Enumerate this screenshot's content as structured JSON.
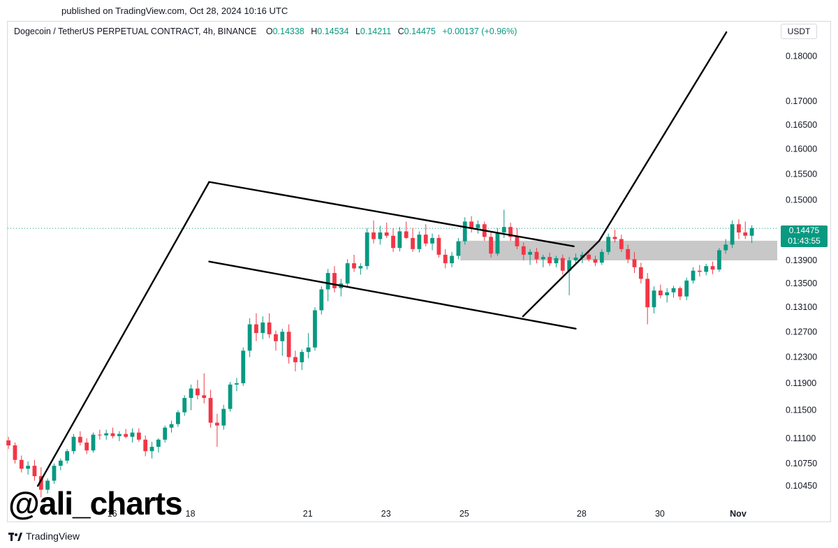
{
  "header": {
    "published": "published on TradingView.com, Oct 28, 2024 10:16 UTC"
  },
  "legend": {
    "symbol": "Dogecoin / TetherUS PERPETUAL CONTRACT, 4h, BINANCE",
    "o_label": "O",
    "o_value": "0.14338",
    "h_label": "H",
    "h_value": "0.14534",
    "l_label": "L",
    "l_value": "0.14211",
    "c_label": "C",
    "c_value": "0.14475",
    "change": "+0.00137 (+0.96%)"
  },
  "currency": "USDT",
  "last_price": {
    "value": "0.14475",
    "countdown": "01:43:55"
  },
  "watermark": "@ali_charts",
  "brand": "TradingView",
  "colors": {
    "up": "#089981",
    "down": "#f23645",
    "pattern_line": "#000000",
    "zone": "#c8c8c8",
    "price_line": "#089981"
  },
  "chart_data": {
    "type": "candlestick",
    "y_scale": "log",
    "ylim": [
      0.1025,
      0.188
    ],
    "y_ticks": [
      "0.18000",
      "0.17000",
      "0.16500",
      "0.16000",
      "0.15500",
      "0.15000",
      "0.13900",
      "0.13500",
      "0.13100",
      "0.12700",
      "0.12300",
      "0.11900",
      "0.11500",
      "0.11100",
      "0.10750",
      "0.10450"
    ],
    "x_ticks": [
      "16",
      "18",
      "21",
      "23",
      "25",
      "28",
      "30",
      "Nov"
    ],
    "x_range_days": [
      13.33,
      33.0
    ],
    "last_price": 0.14475,
    "candles": [
      {
        "o": 0.1107,
        "h": 0.1112,
        "l": 0.1095,
        "c": 0.11
      },
      {
        "o": 0.11,
        "h": 0.1104,
        "l": 0.1075,
        "c": 0.108
      },
      {
        "o": 0.108,
        "h": 0.1086,
        "l": 0.1063,
        "c": 0.1068
      },
      {
        "o": 0.1068,
        "h": 0.1078,
        "l": 0.106,
        "c": 0.1072
      },
      {
        "o": 0.1072,
        "h": 0.108,
        "l": 0.1052,
        "c": 0.1058
      },
      {
        "o": 0.1058,
        "h": 0.107,
        "l": 0.103,
        "c": 0.104
      },
      {
        "o": 0.104,
        "h": 0.1055,
        "l": 0.1035,
        "c": 0.1052
      },
      {
        "o": 0.1052,
        "h": 0.1075,
        "l": 0.1048,
        "c": 0.1072
      },
      {
        "o": 0.1072,
        "h": 0.1082,
        "l": 0.1066,
        "c": 0.1079
      },
      {
        "o": 0.1079,
        "h": 0.1095,
        "l": 0.1075,
        "c": 0.1092
      },
      {
        "o": 0.1092,
        "h": 0.1116,
        "l": 0.1088,
        "c": 0.1112
      },
      {
        "o": 0.1112,
        "h": 0.112,
        "l": 0.11,
        "c": 0.1104
      },
      {
        "o": 0.1104,
        "h": 0.111,
        "l": 0.1088,
        "c": 0.1093
      },
      {
        "o": 0.1093,
        "h": 0.1118,
        "l": 0.109,
        "c": 0.1115
      },
      {
        "o": 0.1115,
        "h": 0.1122,
        "l": 0.1108,
        "c": 0.1114
      },
      {
        "o": 0.1114,
        "h": 0.1122,
        "l": 0.1108,
        "c": 0.1117
      },
      {
        "o": 0.1117,
        "h": 0.1125,
        "l": 0.111,
        "c": 0.1113
      },
      {
        "o": 0.1113,
        "h": 0.112,
        "l": 0.1106,
        "c": 0.1116
      },
      {
        "o": 0.1116,
        "h": 0.1123,
        "l": 0.111,
        "c": 0.1112
      },
      {
        "o": 0.1112,
        "h": 0.1124,
        "l": 0.1104,
        "c": 0.1118
      },
      {
        "o": 0.1118,
        "h": 0.1124,
        "l": 0.1105,
        "c": 0.1108
      },
      {
        "o": 0.1108,
        "h": 0.1114,
        "l": 0.1085,
        "c": 0.1092
      },
      {
        "o": 0.1092,
        "h": 0.1105,
        "l": 0.1082,
        "c": 0.1098
      },
      {
        "o": 0.1098,
        "h": 0.111,
        "l": 0.109,
        "c": 0.1108
      },
      {
        "o": 0.1108,
        "h": 0.1128,
        "l": 0.1104,
        "c": 0.1125
      },
      {
        "o": 0.1125,
        "h": 0.1135,
        "l": 0.1118,
        "c": 0.113
      },
      {
        "o": 0.113,
        "h": 0.115,
        "l": 0.1126,
        "c": 0.1147
      },
      {
        "o": 0.1147,
        "h": 0.1172,
        "l": 0.1142,
        "c": 0.1168
      },
      {
        "o": 0.1168,
        "h": 0.1188,
        "l": 0.115,
        "c": 0.1182
      },
      {
        "o": 0.1182,
        "h": 0.1195,
        "l": 0.1166,
        "c": 0.1172
      },
      {
        "o": 0.1172,
        "h": 0.1205,
        "l": 0.116,
        "c": 0.1168
      },
      {
        "o": 0.1168,
        "h": 0.118,
        "l": 0.1125,
        "c": 0.1132
      },
      {
        "o": 0.1132,
        "h": 0.1145,
        "l": 0.1098,
        "c": 0.1128
      },
      {
        "o": 0.1128,
        "h": 0.1158,
        "l": 0.1122,
        "c": 0.1152
      },
      {
        "o": 0.1152,
        "h": 0.1192,
        "l": 0.1148,
        "c": 0.1188
      },
      {
        "o": 0.1188,
        "h": 0.1198,
        "l": 0.1178,
        "c": 0.119
      },
      {
        "o": 0.119,
        "h": 0.1245,
        "l": 0.1186,
        "c": 0.124
      },
      {
        "o": 0.124,
        "h": 0.1292,
        "l": 0.123,
        "c": 0.1282
      },
      {
        "o": 0.1282,
        "h": 0.13,
        "l": 0.1255,
        "c": 0.1268
      },
      {
        "o": 0.1268,
        "h": 0.1295,
        "l": 0.1258,
        "c": 0.1285
      },
      {
        "o": 0.1285,
        "h": 0.13,
        "l": 0.126,
        "c": 0.1266
      },
      {
        "o": 0.1266,
        "h": 0.1272,
        "l": 0.124,
        "c": 0.1255
      },
      {
        "o": 0.1255,
        "h": 0.1275,
        "l": 0.1232,
        "c": 0.127
      },
      {
        "o": 0.127,
        "h": 0.1282,
        "l": 0.122,
        "c": 0.123
      },
      {
        "o": 0.123,
        "h": 0.124,
        "l": 0.1208,
        "c": 0.1222
      },
      {
        "o": 0.1222,
        "h": 0.1242,
        "l": 0.121,
        "c": 0.1238
      },
      {
        "o": 0.1238,
        "h": 0.1268,
        "l": 0.1228,
        "c": 0.1245
      },
      {
        "o": 0.1245,
        "h": 0.131,
        "l": 0.124,
        "c": 0.1305
      },
      {
        "o": 0.1305,
        "h": 0.1345,
        "l": 0.1298,
        "c": 0.134
      },
      {
        "o": 0.134,
        "h": 0.1375,
        "l": 0.132,
        "c": 0.1368
      },
      {
        "o": 0.1368,
        "h": 0.138,
        "l": 0.1335,
        "c": 0.1342
      },
      {
        "o": 0.1342,
        "h": 0.1358,
        "l": 0.1328,
        "c": 0.135
      },
      {
        "o": 0.135,
        "h": 0.1392,
        "l": 0.1345,
        "c": 0.1385
      },
      {
        "o": 0.1385,
        "h": 0.14,
        "l": 0.137,
        "c": 0.1376
      },
      {
        "o": 0.1376,
        "h": 0.1385,
        "l": 0.1365,
        "c": 0.138
      },
      {
        "o": 0.138,
        "h": 0.1448,
        "l": 0.1374,
        "c": 0.144
      },
      {
        "o": 0.144,
        "h": 0.1462,
        "l": 0.142,
        "c": 0.1428
      },
      {
        "o": 0.1428,
        "h": 0.1452,
        "l": 0.1418,
        "c": 0.144
      },
      {
        "o": 0.144,
        "h": 0.1458,
        "l": 0.143,
        "c": 0.1434
      },
      {
        "o": 0.1434,
        "h": 0.1448,
        "l": 0.1405,
        "c": 0.1412
      },
      {
        "o": 0.1412,
        "h": 0.145,
        "l": 0.1406,
        "c": 0.1442
      },
      {
        "o": 0.1442,
        "h": 0.146,
        "l": 0.1428,
        "c": 0.143
      },
      {
        "o": 0.143,
        "h": 0.1448,
        "l": 0.1405,
        "c": 0.141
      },
      {
        "o": 0.141,
        "h": 0.1442,
        "l": 0.1404,
        "c": 0.1436
      },
      {
        "o": 0.1436,
        "h": 0.1455,
        "l": 0.1415,
        "c": 0.142
      },
      {
        "o": 0.142,
        "h": 0.1438,
        "l": 0.1408,
        "c": 0.143
      },
      {
        "o": 0.143,
        "h": 0.1436,
        "l": 0.1395,
        "c": 0.14
      },
      {
        "o": 0.14,
        "h": 0.141,
        "l": 0.1376,
        "c": 0.1385
      },
      {
        "o": 0.1385,
        "h": 0.1405,
        "l": 0.1378,
        "c": 0.1398
      },
      {
        "o": 0.1398,
        "h": 0.143,
        "l": 0.1392,
        "c": 0.1424
      },
      {
        "o": 0.1424,
        "h": 0.1468,
        "l": 0.1418,
        "c": 0.146
      },
      {
        "o": 0.146,
        "h": 0.147,
        "l": 0.144,
        "c": 0.1448
      },
      {
        "o": 0.1448,
        "h": 0.1462,
        "l": 0.1438,
        "c": 0.1455
      },
      {
        "o": 0.1455,
        "h": 0.146,
        "l": 0.1425,
        "c": 0.1432
      },
      {
        "o": 0.1432,
        "h": 0.144,
        "l": 0.1395,
        "c": 0.1402
      },
      {
        "o": 0.1402,
        "h": 0.1448,
        "l": 0.1398,
        "c": 0.144
      },
      {
        "o": 0.144,
        "h": 0.1482,
        "l": 0.143,
        "c": 0.145
      },
      {
        "o": 0.145,
        "h": 0.1458,
        "l": 0.1425,
        "c": 0.1432
      },
      {
        "o": 0.1432,
        "h": 0.1448,
        "l": 0.141,
        "c": 0.1415
      },
      {
        "o": 0.1415,
        "h": 0.1422,
        "l": 0.139,
        "c": 0.14
      },
      {
        "o": 0.14,
        "h": 0.141,
        "l": 0.1382,
        "c": 0.1405
      },
      {
        "o": 0.1405,
        "h": 0.1412,
        "l": 0.1385,
        "c": 0.1392
      },
      {
        "o": 0.1392,
        "h": 0.14,
        "l": 0.1378,
        "c": 0.1396
      },
      {
        "o": 0.1396,
        "h": 0.1404,
        "l": 0.138,
        "c": 0.1385
      },
      {
        "o": 0.1385,
        "h": 0.1398,
        "l": 0.1378,
        "c": 0.1394
      },
      {
        "o": 0.1394,
        "h": 0.14,
        "l": 0.1365,
        "c": 0.1372
      },
      {
        "o": 0.1372,
        "h": 0.1396,
        "l": 0.133,
        "c": 0.139
      },
      {
        "o": 0.139,
        "h": 0.1402,
        "l": 0.1385,
        "c": 0.1395
      },
      {
        "o": 0.1395,
        "h": 0.1405,
        "l": 0.1385,
        "c": 0.14
      },
      {
        "o": 0.14,
        "h": 0.1406,
        "l": 0.1388,
        "c": 0.1392
      },
      {
        "o": 0.1392,
        "h": 0.1398,
        "l": 0.138,
        "c": 0.1386
      },
      {
        "o": 0.1386,
        "h": 0.141,
        "l": 0.1382,
        "c": 0.1405
      },
      {
        "o": 0.1405,
        "h": 0.1438,
        "l": 0.14,
        "c": 0.1432
      },
      {
        "o": 0.1432,
        "h": 0.1445,
        "l": 0.1422,
        "c": 0.1428
      },
      {
        "o": 0.1428,
        "h": 0.1436,
        "l": 0.1405,
        "c": 0.141
      },
      {
        "o": 0.141,
        "h": 0.1418,
        "l": 0.1385,
        "c": 0.1392
      },
      {
        "o": 0.1392,
        "h": 0.1405,
        "l": 0.1368,
        "c": 0.1378
      },
      {
        "o": 0.1378,
        "h": 0.1386,
        "l": 0.135,
        "c": 0.1358
      },
      {
        "o": 0.1358,
        "h": 0.1368,
        "l": 0.1282,
        "c": 0.131
      },
      {
        "o": 0.131,
        "h": 0.1345,
        "l": 0.13,
        "c": 0.1338
      },
      {
        "o": 0.1338,
        "h": 0.1348,
        "l": 0.1325,
        "c": 0.133
      },
      {
        "o": 0.133,
        "h": 0.1342,
        "l": 0.1318,
        "c": 0.1335
      },
      {
        "o": 0.1335,
        "h": 0.1346,
        "l": 0.1326,
        "c": 0.1342
      },
      {
        "o": 0.1342,
        "h": 0.1345,
        "l": 0.1322,
        "c": 0.1328
      },
      {
        "o": 0.1328,
        "h": 0.136,
        "l": 0.1322,
        "c": 0.1355
      },
      {
        "o": 0.1355,
        "h": 0.1378,
        "l": 0.135,
        "c": 0.1372
      },
      {
        "o": 0.1372,
        "h": 0.1382,
        "l": 0.1362,
        "c": 0.137
      },
      {
        "o": 0.137,
        "h": 0.1384,
        "l": 0.1364,
        "c": 0.138
      },
      {
        "o": 0.138,
        "h": 0.1388,
        "l": 0.1366,
        "c": 0.1374
      },
      {
        "o": 0.1374,
        "h": 0.1412,
        "l": 0.137,
        "c": 0.1408
      },
      {
        "o": 0.1408,
        "h": 0.1428,
        "l": 0.1402,
        "c": 0.1418
      },
      {
        "o": 0.1418,
        "h": 0.1462,
        "l": 0.1412,
        "c": 0.1455
      },
      {
        "o": 0.1455,
        "h": 0.1464,
        "l": 0.1428,
        "c": 0.144
      },
      {
        "o": 0.144,
        "h": 0.146,
        "l": 0.1428,
        "c": 0.1434
      },
      {
        "o": 0.1434,
        "h": 0.1453,
        "l": 0.1421,
        "c": 0.1448
      }
    ],
    "annotations": {
      "flagpole": [
        [
          14.1,
          0.1045
        ],
        [
          18.48,
          0.1535
        ]
      ],
      "channel_upper": [
        [
          18.48,
          0.1535
        ],
        [
          27.8,
          0.1415
        ]
      ],
      "channel_lower": [
        [
          18.48,
          0.1388
        ],
        [
          27.85,
          0.1275
        ]
      ],
      "breakout_line": [
        [
          26.5,
          0.1295
        ],
        [
          28.45,
          0.1425
        ]
      ],
      "target_line": [
        [
          28.45,
          0.1425
        ],
        [
          31.7,
          0.1855
        ]
      ],
      "zone": {
        "x_start": 24.9,
        "y_low": 0.139,
        "y_high": 0.1425
      }
    }
  }
}
